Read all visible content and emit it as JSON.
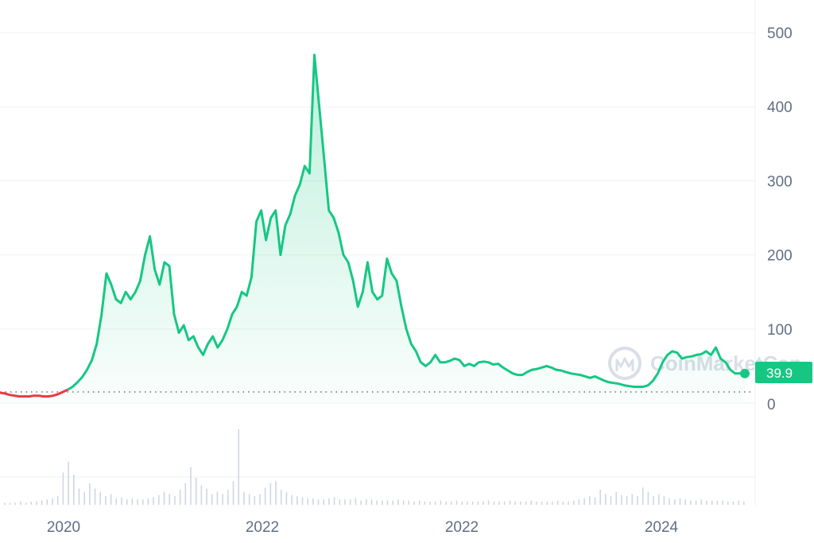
{
  "watermark": {
    "text": "CoinMarketCap",
    "icon": "coinmarketcap-logo-icon"
  },
  "colors": {
    "up_line": "#16c784",
    "down_line": "#ea3943",
    "area_top": "#16c784",
    "grid": "#eff2f5",
    "volume": "#cfd6e4",
    "tick_text": "#616e85",
    "price_tag_bg": "#16c784"
  },
  "chart_data": {
    "type": "line",
    "title": "",
    "xlabel": "",
    "ylabel": "",
    "ylim": [
      0,
      500
    ],
    "grid": true,
    "y_ticks": [
      "500",
      "400",
      "300",
      "200",
      "100",
      "0"
    ],
    "x_ticks": [
      "2020",
      "2022",
      "2022",
      "2024"
    ],
    "current_price": "39.9",
    "baseline": 15,
    "series": [
      {
        "values": [
          14,
          13,
          11,
          10,
          9,
          9,
          9,
          10,
          10,
          9,
          9,
          10,
          12,
          15,
          18,
          22,
          28,
          35,
          45,
          58,
          80,
          120,
          175,
          160,
          140,
          135,
          150,
          140,
          150,
          165,
          200,
          225,
          180,
          160,
          190,
          185,
          120,
          95,
          105,
          85,
          90,
          75,
          65,
          80,
          90,
          75,
          85,
          100,
          120,
          130,
          150,
          145,
          170,
          245,
          260,
          220,
          250,
          260,
          200,
          240,
          255,
          280,
          295,
          320,
          310,
          470,
          400,
          330,
          260,
          250,
          230,
          200,
          190,
          165,
          130,
          150,
          190,
          150,
          140,
          145,
          195,
          175,
          165,
          130,
          100,
          80,
          70,
          55,
          50,
          55,
          65,
          55,
          55,
          57,
          60,
          58,
          50,
          53,
          50,
          55,
          56,
          55,
          52,
          53,
          48,
          44,
          40,
          38,
          38,
          42,
          45,
          46,
          48,
          50,
          48,
          45,
          44,
          42,
          40,
          39,
          38,
          36,
          34,
          36,
          33,
          30,
          28,
          27,
          26,
          24,
          23,
          22,
          22,
          22,
          24,
          30,
          40,
          55,
          65,
          70,
          68,
          60,
          62,
          63,
          65,
          66,
          70,
          65,
          75,
          60,
          55,
          45,
          40,
          40,
          39.9
        ]
      }
    ]
  },
  "volume_data": {
    "values": [
      2,
      2,
      2,
      3,
      2,
      3,
      3,
      4,
      5,
      6,
      8,
      30,
      40,
      28,
      15,
      12,
      20,
      15,
      12,
      8,
      10,
      6,
      7,
      5,
      6,
      5,
      5,
      6,
      7,
      9,
      12,
      10,
      8,
      14,
      20,
      35,
      25,
      18,
      15,
      10,
      12,
      10,
      14,
      22,
      70,
      12,
      10,
      8,
      10,
      16,
      20,
      22,
      14,
      12,
      9,
      8,
      7,
      6,
      6,
      5,
      5,
      6,
      7,
      5,
      5,
      5,
      6,
      4,
      5,
      5,
      4,
      4,
      4,
      4,
      5,
      4,
      4,
      3,
      4,
      3,
      3,
      3,
      4,
      3,
      3,
      4,
      3,
      3,
      3,
      3,
      3,
      4,
      3,
      3,
      3,
      4,
      3,
      3,
      3,
      4,
      3,
      3,
      3,
      3,
      4,
      3,
      3,
      4,
      5,
      6,
      8,
      7,
      14,
      10,
      8,
      12,
      9,
      8,
      10,
      8,
      16,
      12,
      8,
      10,
      8,
      6,
      5,
      6,
      5,
      4,
      4,
      5,
      4,
      4,
      4,
      4,
      3,
      3,
      4,
      3
    ]
  }
}
